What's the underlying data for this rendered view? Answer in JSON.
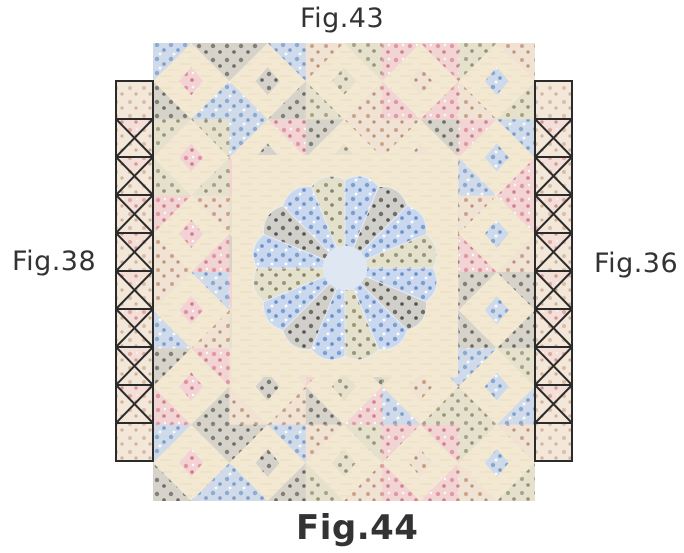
{
  "labels": {
    "top": "Fig.43",
    "left": "Fig.38",
    "right": "Fig.36",
    "bottom": "Fig.44"
  },
  "colors": {
    "background": "#f3e8d2",
    "fabric_blue": "#8aaad6",
    "fabric_pink": "#e6a2ae",
    "fabric_gray": "#8e8c86",
    "fabric_olive": "#a9a68a",
    "fabric_brown": "#c6a58e",
    "outline": "#2b2b2b"
  }
}
